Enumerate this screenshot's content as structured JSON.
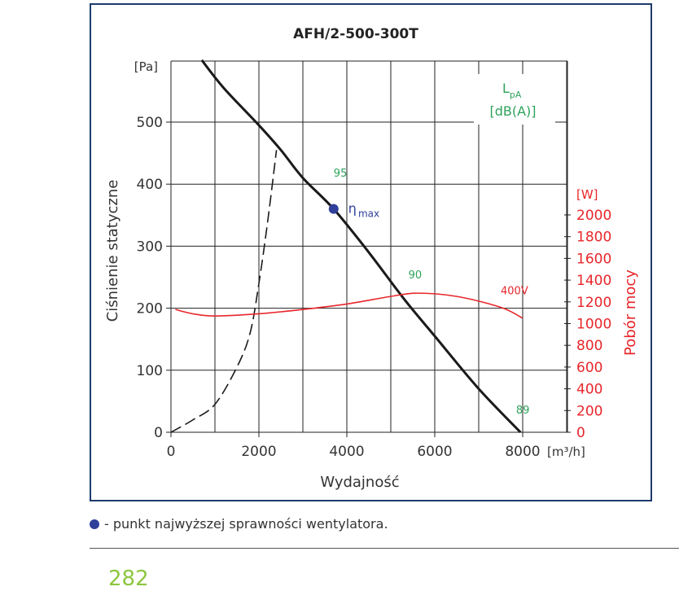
{
  "colors": {
    "frame": "#1d3b6b",
    "curve": "#1a1a1a",
    "power": "#e8262b",
    "noise": "#2fa35b",
    "eta_point": "#2f3f9a",
    "grid": "#222222",
    "page_number": "#8cc63f"
  },
  "chart_data": {
    "type": "line",
    "title": "AFH/2-500-300T",
    "xlabel": "Wydajność",
    "x_unit": "[m³/h]",
    "ylabel": "Ciśnienie statyczne",
    "y_unit": "[Pa]",
    "y2label": "Pobór mocy",
    "y2_unit": "[W]",
    "xlim": [
      0,
      9000
    ],
    "ylim": [
      0,
      600
    ],
    "y2lim": [
      0,
      2000
    ],
    "x_ticks": [
      0,
      2000,
      4000,
      6000,
      8000
    ],
    "x_tick_labels": [
      "0",
      "2000",
      "4000",
      "6000",
      "8000"
    ],
    "y_ticks": [
      0,
      100,
      200,
      300,
      400,
      500
    ],
    "y_tick_labels": [
      "0",
      "100",
      "200",
      "300",
      "400",
      "500"
    ],
    "y2_ticks": [
      0,
      200,
      400,
      600,
      800,
      1000,
      1200,
      1400,
      1600,
      1800,
      2000
    ],
    "y2_tick_labels": [
      "0",
      "200",
      "400",
      "600",
      "800",
      "1000",
      "1200",
      "1400",
      "1600",
      "1800",
      "2000"
    ],
    "grid": true,
    "lpa_box": {
      "line1": "L",
      "sub1": "pA",
      "line2": "[dB(A)]"
    },
    "series": [
      {
        "name": "fan curve",
        "style": "solid",
        "axis": "left",
        "x": [
          700,
          1200,
          2000,
          2500,
          3000,
          3700,
          4500,
          5300,
          6000,
          7000,
          7950
        ],
        "y": [
          600,
          555,
          495,
          455,
          410,
          360,
          290,
          215,
          155,
          70,
          0
        ]
      },
      {
        "name": "system resistance",
        "style": "dashed",
        "axis": "left",
        "x": [
          0,
          500,
          1000,
          1500,
          1800,
          2000,
          2200,
          2400
        ],
        "y": [
          0,
          20,
          45,
          105,
          160,
          240,
          340,
          455
        ]
      },
      {
        "name": "400V",
        "style": "solid",
        "axis": "right",
        "x": [
          100,
          500,
          1000,
          2000,
          3000,
          4000,
          5000,
          5600,
          6500,
          7500,
          8000
        ],
        "y": [
          1130,
          1090,
          1070,
          1090,
          1130,
          1180,
          1250,
          1280,
          1250,
          1150,
          1050
        ]
      }
    ],
    "annotations": [
      {
        "text": "95",
        "x": 3700,
        "y": 412,
        "color": "noise"
      },
      {
        "text": "90",
        "x": 5400,
        "y": 248,
        "color": "noise"
      },
      {
        "text": "89",
        "x": 7850,
        "y": 30,
        "color": "noise"
      },
      {
        "text": "400V",
        "x": 7500,
        "y": 1270,
        "color": "power",
        "axis": "right"
      }
    ],
    "eta_point": {
      "x": 3700,
      "y": 360,
      "label": "η",
      "sub": "max"
    }
  },
  "footer": {
    "legend_text": "- punkt najwyższej sprawności wentylatora.",
    "page_number": "282"
  }
}
